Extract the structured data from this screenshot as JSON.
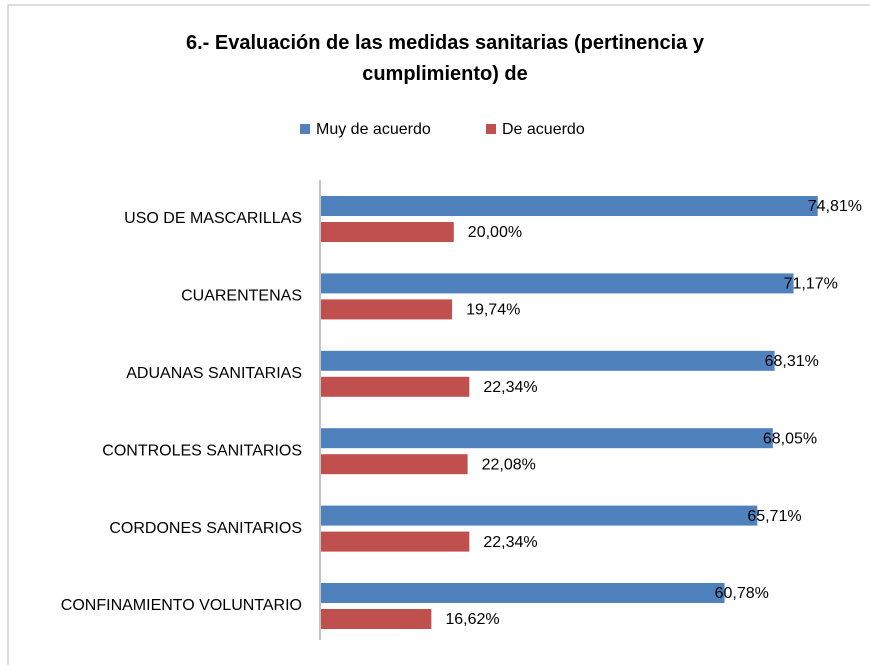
{
  "chart_data": {
    "type": "hbar",
    "title": "6.- Evaluación de las medidas sanitarias (pertinencia y cumplimiento) de",
    "categories": [
      "USO DE MASCARILLAS",
      "CUARENTENAS",
      "ADUANAS SANITARIAS",
      "CONTROLES SANITARIOS",
      "CORDONES SANITARIOS",
      "CONFINAMIENTO VOLUNTARIO"
    ],
    "series": [
      {
        "name": "Muy de acuerdo",
        "color": "#4f81bd",
        "values": [
          74.81,
          71.17,
          68.31,
          68.05,
          65.71,
          60.78
        ],
        "value_labels": [
          "74,81%",
          "71,17%",
          "68,31%",
          "68,05%",
          "65,71%",
          "60,78%"
        ]
      },
      {
        "name": "De acuerdo",
        "color": "#c0504d",
        "values": [
          20.0,
          19.74,
          22.34,
          22.08,
          22.34,
          16.62
        ],
        "value_labels": [
          "20,00%",
          "19,74%",
          "22,34%",
          "22,08%",
          "22,34%",
          "16,62%"
        ]
      }
    ],
    "legend": "top"
  }
}
